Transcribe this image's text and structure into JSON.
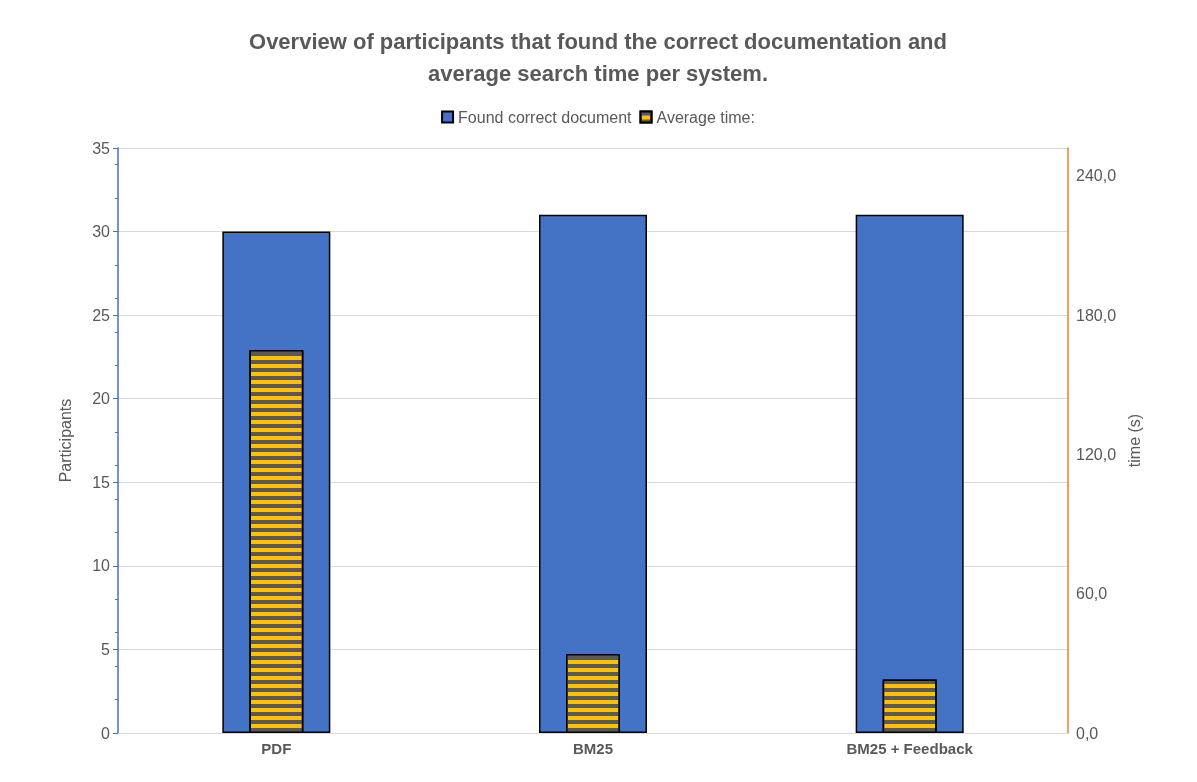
{
  "chart_data": {
    "type": "bar",
    "title": "Overview of participants that found the correct documentation and\naverage search time per system.",
    "categories": [
      "PDF",
      "BM25",
      "BM25 + Feedback"
    ],
    "ylabel": "Participants",
    "y2label": "time (s)",
    "series": [
      {
        "name": "Found correct document",
        "color": "#4472c4",
        "values": [
          30,
          31,
          31
        ]
      },
      {
        "name": "Average time:",
        "color": "#ffc000",
        "values": [
          165,
          34,
          23
        ],
        "axis": "y2"
      }
    ],
    "ylim": [
      0,
      35
    ],
    "yticks": [
      0,
      5,
      10,
      15,
      20,
      25,
      30,
      35
    ],
    "y2lim": [
      0,
      252
    ],
    "y2ticks": [
      {
        "value": 0,
        "label": "0,0"
      },
      {
        "value": 60,
        "label": "60,0"
      },
      {
        "value": 120,
        "label": "120,0"
      },
      {
        "value": 180,
        "label": "180,0"
      },
      {
        "value": 240,
        "label": "240,0"
      }
    ],
    "grid": "y",
    "legend": "top"
  }
}
